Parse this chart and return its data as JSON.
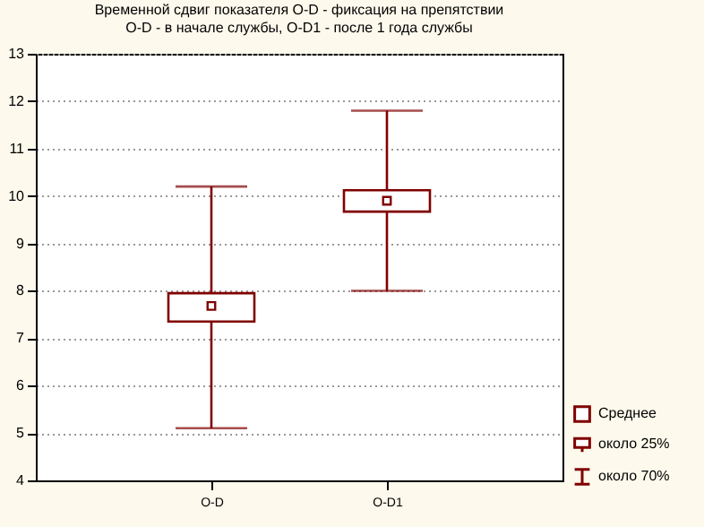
{
  "chart_data": {
    "type": "box",
    "title": "Временной сдвиг показателя O-D - фиксация на препятствии",
    "subtitle": "O-D - в начале службы, O-D1 - после 1 года службы",
    "categories": [
      "O-D",
      "O-D1"
    ],
    "boxes": [
      {
        "low": 5.1,
        "q1": 7.35,
        "q3": 7.95,
        "high": 10.2,
        "mean": 7.68
      },
      {
        "low": 8.0,
        "q1": 9.67,
        "q3": 10.12,
        "high": 11.8,
        "mean": 9.9
      }
    ],
    "color": "#800000",
    "annotations": [
      "Среднее",
      "около 25%",
      "около 70%"
    ],
    "ylim": [
      4,
      13
    ],
    "yticks": [
      4,
      5,
      6,
      7,
      8,
      9,
      10,
      11,
      12,
      13
    ],
    "grid": "y",
    "marker": "square"
  }
}
